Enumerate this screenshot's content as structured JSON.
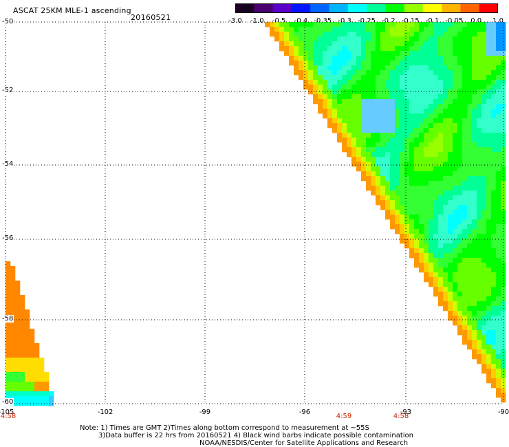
{
  "header": {
    "title": "ASCAT 25KM MLE-1 ascending",
    "date": "20160521"
  },
  "colorbar": {
    "labels": [
      "-3.0",
      "-1.0",
      "-0.5",
      "-0.4",
      "-0.35",
      "-0.3",
      "-0.25",
      "-0.2",
      "-0.15",
      "-0.1",
      "-0.05",
      "0.0",
      "1.0"
    ],
    "colors": [
      "#1a0020",
      "#4a0070",
      "#5a00c8",
      "#0014ff",
      "#0064ff",
      "#00b4ff",
      "#00ffff",
      "#00ff96",
      "#00ff00",
      "#96ff00",
      "#ffff00",
      "#ffb400",
      "#ff6400",
      "#ff0000"
    ]
  },
  "axes": {
    "lat_labels": [
      "-50",
      "-52",
      "-54",
      "-56",
      "-58",
      "-60"
    ],
    "lon_labels": [
      "-105",
      "-102",
      "-99",
      "-96",
      "-93",
      "-90"
    ],
    "time_labels": [
      "4:58",
      "4:59",
      "4:58"
    ]
  },
  "notes": {
    "line1": "Note: 1) Times are GMT 2)Times along bottom correspond to measurement at ~55S",
    "line2": "3)Data buffer is 22 hrs from 20160521 4) Black wind barbs indicate possible contamination",
    "line3": "NOAA/NESDIS/Center for Satellite Applications and Research"
  }
}
